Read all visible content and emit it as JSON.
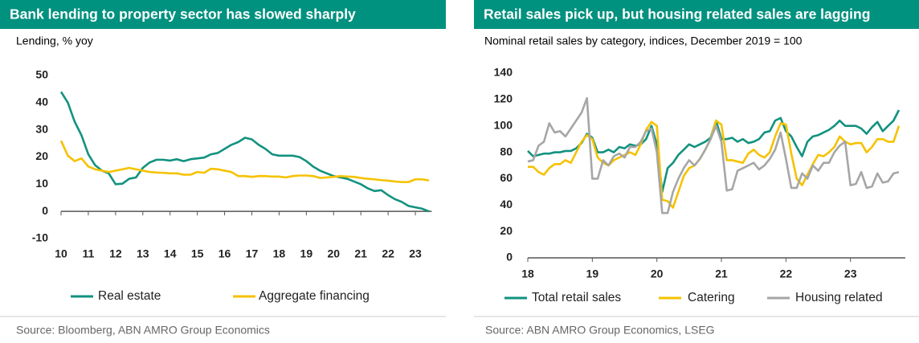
{
  "chart_data": [
    {
      "type": "line",
      "title": "Bank lending to property sector has slowed sharply",
      "subtitle": "Lending, % yoy",
      "source": "Source: Bloomberg, ABN AMRO Group Economics",
      "legend": "bottom",
      "x": [
        2010,
        2010.25,
        2010.5,
        2010.75,
        2011,
        2011.25,
        2011.5,
        2011.75,
        2012,
        2012.25,
        2012.5,
        2012.75,
        2013,
        2013.25,
        2013.5,
        2013.75,
        2014,
        2014.25,
        2014.5,
        2014.75,
        2015,
        2015.25,
        2015.5,
        2015.75,
        2016,
        2016.25,
        2016.5,
        2016.75,
        2017,
        2017.25,
        2017.5,
        2017.75,
        2018,
        2018.25,
        2018.5,
        2018.75,
        2019,
        2019.25,
        2019.5,
        2019.75,
        2020,
        2020.25,
        2020.5,
        2020.75,
        2021,
        2021.25,
        2021.5,
        2021.75,
        2022,
        2022.25,
        2022.5,
        2022.75,
        2023,
        2023.25,
        2023.5
      ],
      "series": [
        {
          "name": "Real estate",
          "color": "#12927f",
          "values": [
            44,
            40,
            33,
            28,
            21,
            17,
            15,
            14,
            10,
            10.2,
            12,
            12.5,
            16,
            18,
            19,
            19,
            18.7,
            19.2,
            18.5,
            19.2,
            19.5,
            19.8,
            21,
            21.5,
            23,
            24.5,
            25.5,
            27.1,
            26.5,
            24.5,
            23,
            21,
            20.5,
            20.5,
            20.5,
            20,
            18.5,
            16.5,
            15,
            14,
            13,
            12.5,
            12,
            11,
            10,
            8.5,
            7.5,
            7.8,
            6,
            4.5,
            3.5,
            2,
            1.5,
            1,
            0
          ]
        },
        {
          "name": "Aggregate financing",
          "color": "#f5c200",
          "values": [
            26,
            20.5,
            18.5,
            19.5,
            16.5,
            15.5,
            15,
            14.5,
            15,
            15.5,
            16,
            15.5,
            15,
            14.5,
            14.3,
            14.2,
            14,
            14,
            13.5,
            13.5,
            14.5,
            14.2,
            15.7,
            15.5,
            15,
            14.5,
            13,
            13,
            12.7,
            13,
            13,
            12.8,
            12.8,
            12.5,
            13,
            13.2,
            13.2,
            13,
            12.3,
            12.5,
            12.7,
            13,
            12.8,
            12.7,
            12.3,
            12,
            11.8,
            11.5,
            11.3,
            11,
            10.8,
            10.8,
            11.8,
            11.8,
            11.4
          ]
        }
      ],
      "xlim": [
        2010,
        2023.6
      ],
      "xticks": [
        {
          "value": 2010,
          "label": "10"
        },
        {
          "value": 2011,
          "label": "11"
        },
        {
          "value": 2012,
          "label": "12"
        },
        {
          "value": 2013,
          "label": "13"
        },
        {
          "value": 2014,
          "label": "14"
        },
        {
          "value": 2015,
          "label": "15"
        },
        {
          "value": 2016,
          "label": "16"
        },
        {
          "value": 2017,
          "label": "17"
        },
        {
          "value": 2018,
          "label": "18"
        },
        {
          "value": 2019,
          "label": "19"
        },
        {
          "value": 2020,
          "label": "20"
        },
        {
          "value": 2021,
          "label": "21"
        },
        {
          "value": 2022,
          "label": "22"
        },
        {
          "value": 2023,
          "label": "23"
        }
      ],
      "ylim": [
        -10,
        50
      ],
      "yticks": [
        -10,
        0,
        10,
        20,
        30,
        40,
        50
      ],
      "grid": false
    },
    {
      "type": "line",
      "title": "Retail sales pick up, but housing related sales are lagging",
      "subtitle": "Nominal retail sales by category, indices, December 2019 = 100",
      "source": "Source: ABN AMRO Group Economics, LSEG",
      "legend": "bottom",
      "x": [
        2018,
        2018.083,
        2018.167,
        2018.25,
        2018.333,
        2018.417,
        2018.5,
        2018.583,
        2018.667,
        2018.75,
        2018.833,
        2018.917,
        2019,
        2019.083,
        2019.167,
        2019.25,
        2019.333,
        2019.417,
        2019.5,
        2019.583,
        2019.667,
        2019.75,
        2019.833,
        2019.917,
        2020,
        2020.083,
        2020.167,
        2020.25,
        2020.333,
        2020.417,
        2020.5,
        2020.583,
        2020.667,
        2020.75,
        2020.833,
        2020.917,
        2021,
        2021.083,
        2021.167,
        2021.25,
        2021.333,
        2021.417,
        2021.5,
        2021.583,
        2021.667,
        2021.75,
        2021.833,
        2021.917,
        2022,
        2022.083,
        2022.167,
        2022.25,
        2022.333,
        2022.417,
        2022.5,
        2022.583,
        2022.667,
        2022.75,
        2022.833,
        2022.917,
        2023,
        2023.083,
        2023.167,
        2023.25,
        2023.333,
        2023.417,
        2023.5,
        2023.583,
        2023.667,
        2023.75
      ],
      "series": [
        {
          "name": "Total retail sales",
          "color": "#12927f",
          "values": [
            81,
            77,
            78,
            79,
            79,
            80,
            80,
            81,
            81,
            83,
            87,
            94,
            91,
            80,
            80,
            82,
            80,
            84,
            83,
            86,
            85,
            86,
            90,
            100,
            86,
            50,
            68,
            72,
            78,
            82,
            86,
            84,
            86,
            88,
            91,
            104,
            90,
            90,
            91,
            88,
            90,
            87,
            88,
            90,
            95,
            96,
            104,
            106,
            96,
            92,
            84,
            77,
            88,
            92,
            93,
            95,
            97,
            100,
            104,
            100,
            100,
            100,
            98,
            94,
            99,
            103,
            96,
            100,
            104,
            112
          ]
        },
        {
          "name": "Catering",
          "color": "#f5c200",
          "values": [
            69,
            69,
            65,
            63,
            68,
            71,
            71,
            74,
            72,
            80,
            88,
            93,
            90,
            76,
            72,
            70,
            74,
            76,
            78,
            80,
            78,
            86,
            97,
            103,
            100,
            44,
            43,
            38,
            50,
            62,
            68,
            70,
            75,
            82,
            90,
            104,
            101,
            74,
            74,
            73,
            72,
            79,
            82,
            78,
            76,
            80,
            92,
            102,
            101,
            79,
            60,
            55,
            63,
            71,
            78,
            77,
            80,
            84,
            92,
            88,
            86,
            87,
            87,
            80,
            84,
            90,
            90,
            88,
            88,
            100
          ]
        },
        {
          "name": "Housing related",
          "color": "#a6a6a6",
          "values": [
            73,
            74,
            85,
            88,
            102,
            95,
            96,
            92,
            98,
            104,
            110,
            121,
            60,
            60,
            74,
            70,
            77,
            79,
            76,
            84,
            84,
            88,
            96,
            98,
            80,
            34,
            34,
            50,
            60,
            68,
            74,
            70,
            75,
            82,
            90,
            100,
            88,
            51,
            52,
            66,
            68,
            70,
            72,
            67,
            70,
            75,
            82,
            95,
            75,
            53,
            53,
            64,
            60,
            70,
            66,
            72,
            72,
            80,
            85,
            88,
            55,
            56,
            65,
            53,
            54,
            64,
            57,
            58,
            64,
            65
          ]
        }
      ],
      "xlim": [
        2018,
        2023.85
      ],
      "xticks": [
        {
          "value": 2018,
          "label": "18"
        },
        {
          "value": 2019,
          "label": "19"
        },
        {
          "value": 2020,
          "label": "20"
        },
        {
          "value": 2021,
          "label": "21"
        },
        {
          "value": 2022,
          "label": "22"
        },
        {
          "value": 2023,
          "label": "23"
        }
      ],
      "ylim": [
        0,
        140
      ],
      "yticks": [
        0,
        20,
        40,
        60,
        80,
        100,
        120,
        140
      ],
      "grid": false
    }
  ]
}
